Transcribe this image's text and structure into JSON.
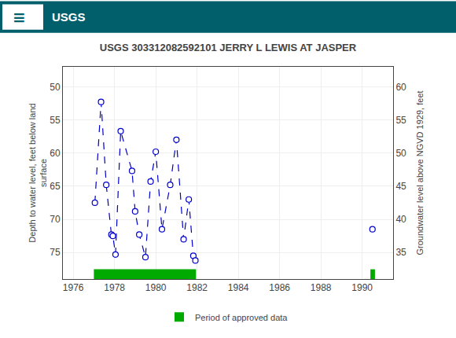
{
  "chart_data": {
    "type": "line",
    "title": "USGS 303312082592101 JERRY L LEWIS AT JASPER",
    "annotations": [
      "≡",
      "USGS"
    ],
    "ylabel": "Depth to water level, feet below land\nsurface",
    "y2label": "Groundwater level above NGVD 1929, feet",
    "xlim": [
      1975.5,
      1991.5
    ],
    "xticks": [
      1976,
      1978,
      1980,
      1982,
      1984,
      1986,
      1988,
      1990
    ],
    "ylim": [
      79,
      47
    ],
    "yticks": [
      50,
      55,
      60,
      65,
      70,
      75
    ],
    "y2lim": [
      31,
      63
    ],
    "y2ticks": [
      60,
      55,
      50,
      45,
      40,
      35
    ],
    "grid": true,
    "legend": "bottom",
    "series": [
      {
        "type": "line",
        "line_style": "dashed",
        "marker": "circle",
        "color": "#0000cc",
        "x": [
          1977.05,
          1977.35,
          1977.6,
          1977.85,
          1977.92,
          1978.05,
          1978.3,
          1978.85,
          1979.0,
          1979.2,
          1979.5,
          1979.75,
          1980.0,
          1980.3,
          1980.7,
          1981.0,
          1981.35,
          1981.6,
          1981.82,
          1981.92
        ],
        "values": [
          67.5,
          52.3,
          64.8,
          72.3,
          72.5,
          75.3,
          56.7,
          62.7,
          68.8,
          72.3,
          75.7,
          64.3,
          59.8,
          71.5,
          64.8,
          58.0,
          73.0,
          67.0,
          75.5,
          76.2
        ]
      },
      {
        "type": "line",
        "line_style": "dashed",
        "marker": "circle",
        "color": "#0000cc",
        "x": [
          1990.5
        ],
        "values": [
          71.5
        ]
      },
      {
        "type": "bar",
        "orientation": "horizontal",
        "name": "Period of approved data",
        "color": "#00aa00",
        "periods": [
          [
            1977.0,
            1981.95
          ],
          [
            1990.4,
            1990.62
          ]
        ]
      }
    ]
  }
}
